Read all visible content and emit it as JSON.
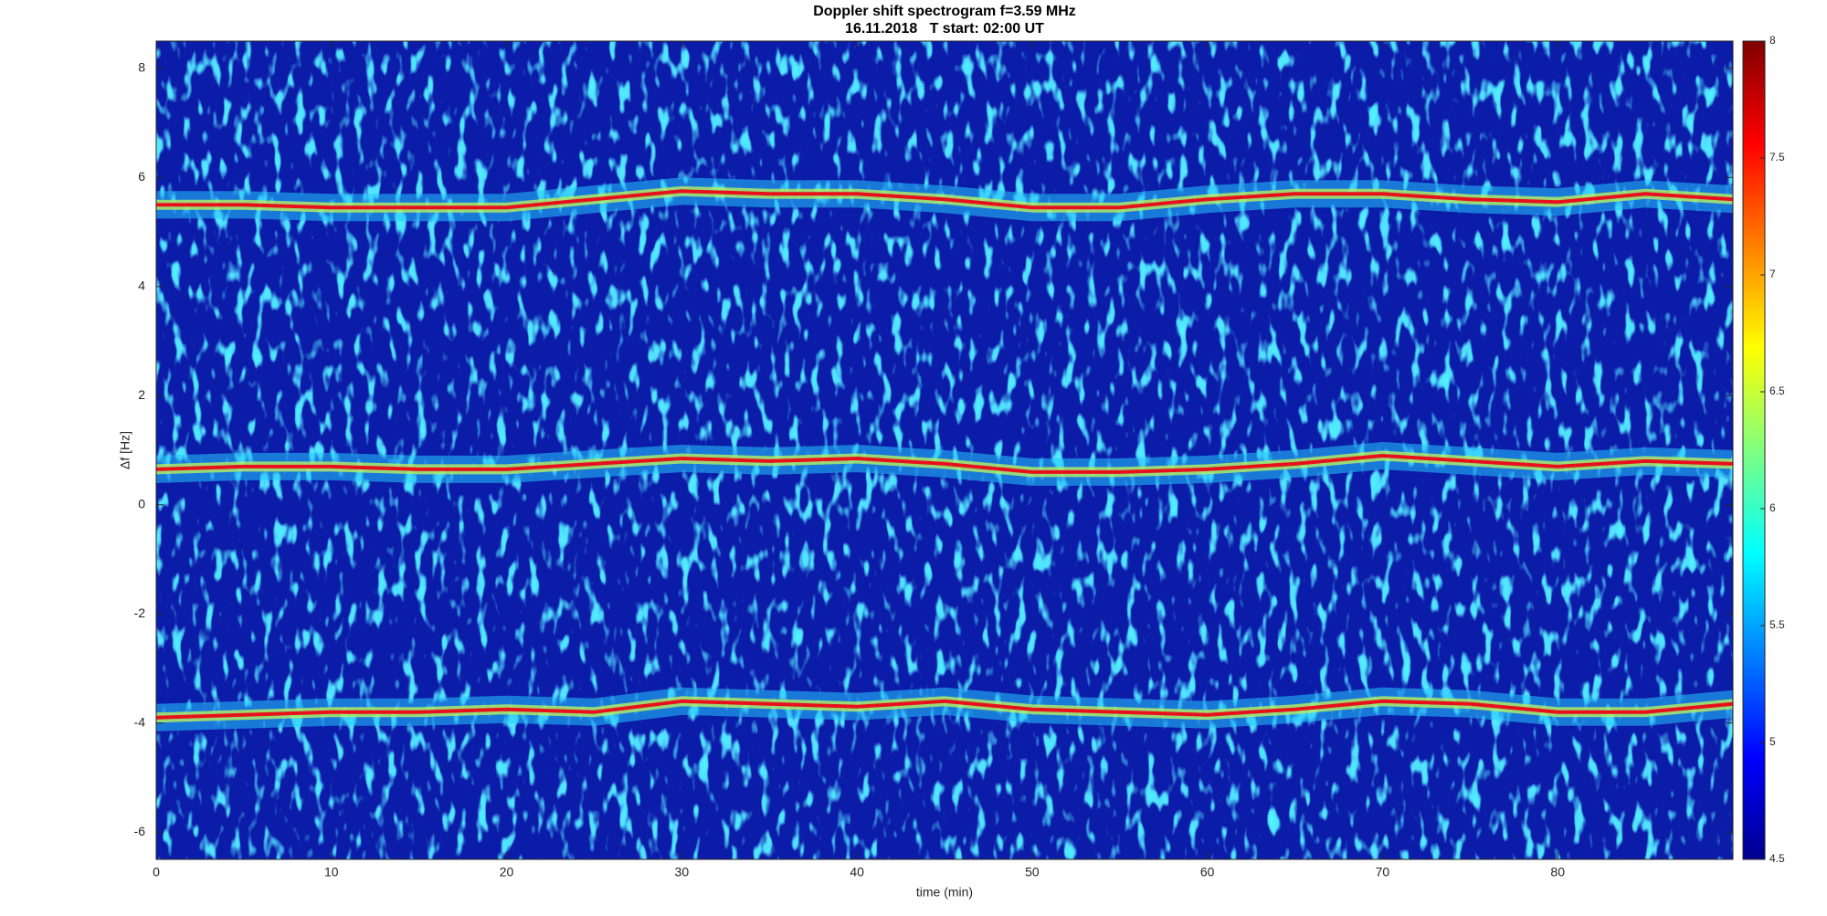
{
  "chart_data": {
    "type": "spectrogram",
    "title": "Doppler shift spectrogram f=3.59 MHz",
    "subtitle": "16.11.2018   T start: 02:00 UT",
    "xlabel": "time (min)",
    "ylabel": "Δf [Hz]",
    "xlim": [
      0,
      90
    ],
    "xticks": [
      0,
      10,
      20,
      30,
      40,
      50,
      60,
      70,
      80
    ],
    "ylim": [
      -6.5,
      8.5
    ],
    "yticks": [
      -6,
      -4,
      -2,
      0,
      2,
      4,
      6,
      8
    ],
    "colormap": "jet",
    "clim": [
      4.5,
      8
    ],
    "cticks": [
      4.5,
      5,
      5.5,
      6,
      6.5,
      7,
      7.5,
      8
    ],
    "x": [
      0,
      5,
      10,
      15,
      20,
      25,
      30,
      35,
      40,
      45,
      50,
      55,
      60,
      65,
      70,
      75,
      80,
      85,
      90
    ],
    "series": [
      {
        "color": "#e8101a",
        "values": [
          5.5,
          5.5,
          5.45,
          5.45,
          5.45,
          5.6,
          5.75,
          5.7,
          5.7,
          5.6,
          5.45,
          5.45,
          5.6,
          5.7,
          5.7,
          5.6,
          5.55,
          5.7,
          5.6
        ]
      },
      {
        "color": "#e8101a",
        "values": [
          0.65,
          0.7,
          0.7,
          0.65,
          0.65,
          0.75,
          0.85,
          0.8,
          0.85,
          0.75,
          0.6,
          0.6,
          0.65,
          0.75,
          0.9,
          0.8,
          0.7,
          0.8,
          0.75
        ]
      },
      {
        "color": "#e8101a",
        "values": [
          -3.9,
          -3.85,
          -3.8,
          -3.8,
          -3.75,
          -3.8,
          -3.6,
          -3.65,
          -3.7,
          -3.6,
          -3.75,
          -3.8,
          -3.85,
          -3.75,
          -3.6,
          -3.65,
          -3.8,
          -3.8,
          -3.65
        ]
      }
    ]
  }
}
